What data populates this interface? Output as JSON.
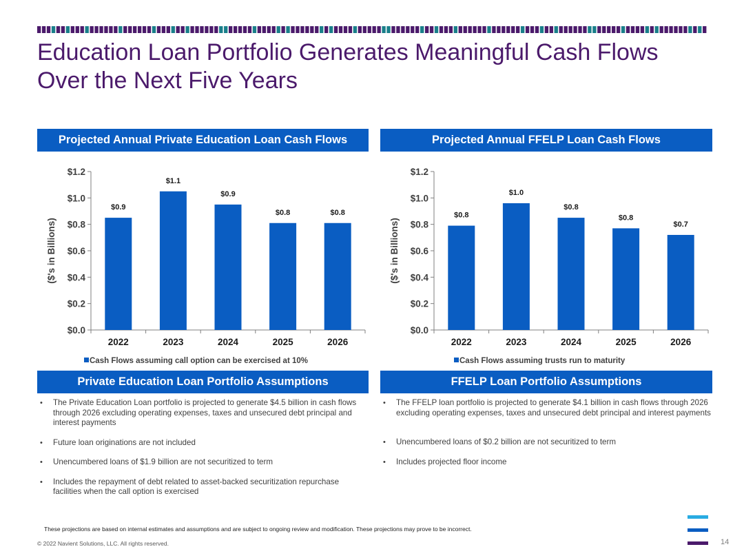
{
  "slide": {
    "title_line1": "Education Loan Portfolio Generates Meaningful Cash Flows",
    "title_line2": "Over the Next Five Years",
    "page_number": "14",
    "disclaimer": "These projections are based on internal estimates and assumptions and are subject to ongoing review and modification. These projections may prove to be incorrect.",
    "copyright": "© 2022 Navient Solutions, LLC. All rights reserved."
  },
  "colors": {
    "title": "#4b1a6b",
    "header": "#0a5dc2",
    "bar": "#0a5dc2",
    "stripe_purple": "#4b1a6b",
    "stripe_teal": "#1a7f8a",
    "logo_light": "#29abe2",
    "logo_mid": "#0a5dc2",
    "logo_dark": "#4b1a6b"
  },
  "headers": {
    "private_chart": "Projected Annual Private Education Loan Cash Flows",
    "ffelp_chart": "Projected Annual FFELP Loan Cash Flows",
    "private_assumptions": "Private Education Loan Portfolio Assumptions",
    "ffelp_assumptions": "FFELP Loan Portfolio Assumptions"
  },
  "chart_data": [
    {
      "type": "bar",
      "categories": [
        "2022",
        "2023",
        "2024",
        "2025",
        "2026"
      ],
      "values": [
        0.85,
        1.05,
        0.95,
        0.81,
        0.81
      ],
      "data_labels": [
        "$0.9",
        "$1.1",
        "$0.9",
        "$0.8",
        "$0.8"
      ],
      "ylabel": "($'s in Billions)",
      "ylim": [
        0,
        1.2
      ],
      "yticks": [
        0,
        0.2,
        0.4,
        0.6,
        0.8,
        1.0,
        1.2
      ],
      "ytick_labels": [
        "$0.0",
        "$0.2",
        "$0.4",
        "$0.6",
        "$0.8",
        "$1.0",
        "$1.2"
      ],
      "legend": "Cash Flows assuming call option can be exercised at 10%",
      "legend_position": "bottom",
      "grid": false
    },
    {
      "type": "bar",
      "categories": [
        "2022",
        "2023",
        "2024",
        "2025",
        "2026"
      ],
      "values": [
        0.79,
        0.96,
        0.85,
        0.77,
        0.72
      ],
      "data_labels": [
        "$0.8",
        "$1.0",
        "$0.8",
        "$0.8",
        "$0.7"
      ],
      "ylabel": "($'s in Billions)",
      "ylim": [
        0,
        1.2
      ],
      "yticks": [
        0,
        0.2,
        0.4,
        0.6,
        0.8,
        1.0,
        1.2
      ],
      "ytick_labels": [
        "$0.0",
        "$0.2",
        "$0.4",
        "$0.6",
        "$0.8",
        "$1.0",
        "$1.2"
      ],
      "legend": "Cash Flows assuming trusts run to maturity",
      "legend_position": "bottom",
      "grid": false
    }
  ],
  "private_bullets": [
    "The Private Education Loan portfolio is projected to generate $4.5 billion in cash flows through 2026 excluding operating expenses, taxes and unsecured debt principal and interest payments",
    "Future loan originations are not included",
    "Unencumbered loans of $1.9 billion are not securitized to term",
    "Includes the repayment of debt related to asset-backed securitization repurchase facilities when the call option is exercised"
  ],
  "ffelp_bullets": [
    "The FFELP loan portfolio is projected to generate $4.1 billion in cash flows through 2026 excluding operating expenses, taxes and unsecured debt principal and interest payments",
    "Unencumbered loans of $0.2 billion are not securitized to term",
    "Includes projected floor income"
  ]
}
